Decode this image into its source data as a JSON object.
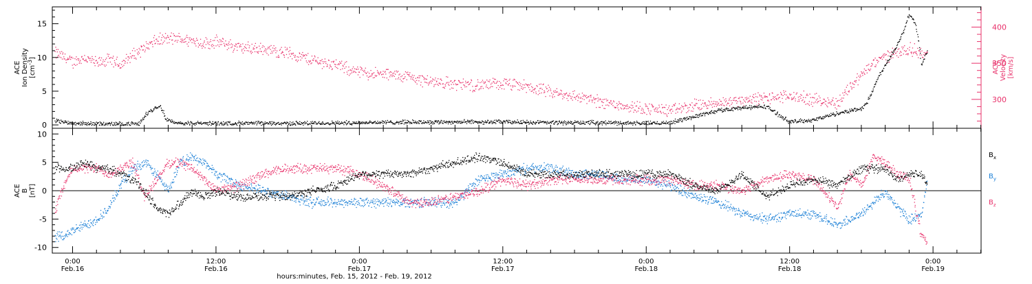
{
  "colors": {
    "density": "#000000",
    "velocity": "#e8306a",
    "bx": "#000000",
    "by": "#1a7fd6",
    "bz": "#e8306a",
    "frame": "#000000"
  },
  "footer_label": "hours:minutes, Feb. 15, 2012 - Feb. 19, 2012",
  "x_axis": {
    "range_hours": [
      -6,
      24
    ],
    "ticks": [
      {
        "hour": 0,
        "time": "0:00",
        "date": "Feb.16"
      },
      {
        "hour": 12,
        "time": "12:00",
        "date": "Feb.16"
      },
      {
        "hour": 24,
        "time": "0:00",
        "date": "Feb.17"
      },
      {
        "hour": 36,
        "time": "12:00",
        "date": "Feb.17"
      },
      {
        "hour": 48,
        "time": "0:00",
        "date": "Feb.18"
      },
      {
        "hour": 60,
        "time": "12:00",
        "date": "Feb.18"
      },
      {
        "hour": 72,
        "time": "0:00",
        "date": "Feb.19"
      }
    ],
    "minor_step_hours": 2
  },
  "chart_data": [
    {
      "type": "scatter",
      "panel": "top",
      "ylabel_left": [
        "ACE",
        "Ion Density",
        "[cm^-3]"
      ],
      "ylabel_right": [
        "ACE",
        "Velocity",
        "[km/s]"
      ],
      "ylim_left": [
        -0.5,
        17.5
      ],
      "ylim_right": [
        260,
        428
      ],
      "yticks_left": [
        0,
        5,
        10,
        15
      ],
      "yticks_right": [
        300,
        350,
        400
      ],
      "series": [
        {
          "name": "",
          "axis": "left",
          "color_key": "density",
          "x": [
            -1.5,
            0,
            3,
            5.5,
            6.2,
            6.8,
            7.3,
            7.8,
            8.5,
            12,
            20,
            24,
            30,
            36,
            40,
            44,
            48,
            50,
            52,
            54,
            56,
            58,
            60,
            62,
            64,
            66,
            66.5,
            67,
            67.5,
            68,
            68.5,
            69,
            69.5,
            70,
            70.5,
            70.8,
            71,
            71.5
          ],
          "y": [
            0.7,
            0.3,
            0.2,
            0.2,
            1.8,
            2.5,
            3,
            1,
            0.3,
            0.3,
            0.3,
            0.4,
            0.5,
            0.5,
            0.4,
            0.4,
            0.3,
            0.4,
            1.3,
            2.2,
            2.6,
            2.8,
            0.5,
            0.8,
            1.8,
            2.5,
            3.5,
            5.5,
            7.5,
            9,
            10.5,
            12,
            14,
            16.5,
            15,
            12,
            9,
            11
          ]
        },
        {
          "name": "",
          "axis": "right",
          "color_key": "velocity",
          "x": [
            -1.5,
            0,
            1,
            2,
            3,
            4,
            5,
            6,
            7,
            8,
            9,
            10,
            11,
            12,
            14,
            16,
            18,
            20,
            22,
            24,
            26,
            28,
            30,
            32,
            34,
            36,
            38,
            40,
            42,
            44,
            46,
            48,
            50,
            52,
            54,
            56,
            58,
            60,
            62,
            64,
            65,
            66,
            67,
            68,
            69,
            70,
            71,
            71.5
          ],
          "y": [
            365,
            352,
            358,
            350,
            355,
            348,
            362,
            372,
            382,
            385,
            384,
            382,
            378,
            380,
            372,
            370,
            365,
            355,
            348,
            338,
            335,
            332,
            325,
            322,
            320,
            322,
            318,
            310,
            305,
            298,
            292,
            288,
            285,
            292,
            295,
            300,
            302,
            305,
            300,
            295,
            318,
            335,
            350,
            360,
            367,
            370,
            365,
            362
          ]
        }
      ]
    },
    {
      "type": "scatter",
      "panel": "bottom",
      "ylabel_left": [
        "ACE",
        "B",
        "[nT]"
      ],
      "ylim": [
        -11,
        11
      ],
      "yticks": [
        -10,
        -5,
        0,
        5,
        10
      ],
      "zero_line": true,
      "legend": [
        {
          "label": "B",
          "sub": "x",
          "color_key": "bx"
        },
        {
          "label": "B",
          "sub": "y",
          "color_key": "by"
        },
        {
          "label": "B",
          "sub": "z",
          "color_key": "bz"
        }
      ],
      "series": [
        {
          "name": "Bx",
          "color_key": "bx",
          "x": [
            -1.5,
            0,
            1,
            2,
            3,
            4,
            5,
            6,
            7,
            8,
            9,
            10,
            11,
            12,
            14,
            16,
            18,
            20,
            22,
            24,
            26,
            28,
            30,
            32,
            34,
            36,
            38,
            40,
            42,
            44,
            46,
            48,
            50,
            52,
            54,
            56,
            58,
            60,
            62,
            64,
            66,
            68,
            69,
            70,
            71,
            71.5
          ],
          "y": [
            4,
            4,
            5,
            4,
            4,
            3,
            2,
            0,
            -3,
            -4,
            -2,
            0,
            -1,
            0,
            -1,
            -1,
            -1,
            0,
            1,
            3,
            3,
            3,
            4,
            5,
            6,
            5,
            3,
            3,
            3,
            3,
            3,
            3,
            3,
            1,
            0,
            3,
            -1,
            1,
            2,
            1,
            4,
            4,
            2,
            3,
            3,
            1
          ]
        },
        {
          "name": "By",
          "color_key": "by",
          "x": [
            -1.5,
            -1,
            0,
            1,
            2,
            3,
            4,
            5,
            6,
            7,
            8,
            9,
            10,
            11,
            12,
            13,
            14,
            16,
            18,
            20,
            22,
            24,
            26,
            28,
            30,
            32,
            34,
            36,
            38,
            40,
            42,
            44,
            46,
            48,
            50,
            52,
            54,
            56,
            58,
            60,
            62,
            64,
            66,
            68,
            69,
            70,
            71,
            71.5
          ],
          "y": [
            -8,
            -8,
            -7,
            -6,
            -5,
            -3,
            1,
            4,
            5,
            3,
            0,
            5,
            6,
            5,
            3,
            2,
            1,
            0,
            -1,
            -2,
            -2,
            -2,
            -2,
            -2,
            -2,
            -2,
            2,
            3,
            4,
            4,
            3,
            3,
            2,
            2,
            1,
            -1,
            -2,
            -4,
            -5,
            -4,
            -4,
            -6,
            -4,
            0,
            -3,
            -5,
            -4,
            2
          ]
        },
        {
          "name": "Bz",
          "color_key": "bz",
          "x": [
            -1.5,
            -1,
            0,
            1,
            2,
            3,
            4,
            5,
            6,
            7,
            8,
            9,
            10,
            11,
            12,
            14,
            16,
            18,
            20,
            22,
            24,
            26,
            28,
            30,
            32,
            34,
            36,
            38,
            40,
            42,
            44,
            46,
            48,
            50,
            52,
            54,
            56,
            58,
            60,
            62,
            64,
            65,
            66,
            67,
            68,
            69,
            70,
            71,
            71.5
          ],
          "y": [
            -4,
            0,
            4,
            4,
            4,
            3,
            4,
            5,
            -1,
            2,
            5,
            5,
            4,
            2,
            0,
            1,
            3,
            4,
            4,
            4,
            3,
            1,
            -2,
            -2,
            -1,
            0,
            2,
            1,
            2,
            2,
            2,
            2,
            2,
            2,
            1,
            1,
            0,
            2,
            3,
            2,
            -3,
            3,
            1,
            6,
            5,
            3,
            2,
            -8,
            -9
          ]
        }
      ]
    }
  ]
}
